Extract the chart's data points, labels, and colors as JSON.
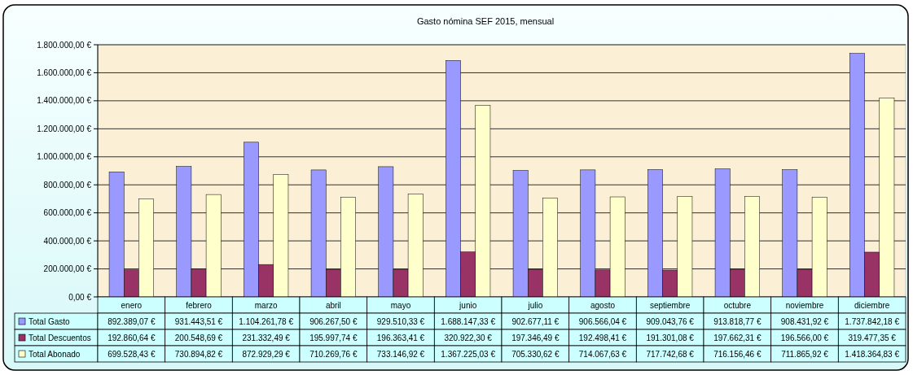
{
  "chart_data": {
    "type": "bar",
    "title": "Gasto nómina SEF 2015, mensual",
    "categories": [
      "enero",
      "febrero",
      "marzo",
      "abril",
      "mayo",
      "junio",
      "julio",
      "agosto",
      "septiembre",
      "octubre",
      "noviembre",
      "diciembre"
    ],
    "series": [
      {
        "name": "Total Gasto",
        "color": "#9999ff",
        "values": [
          892389.07,
          931443.51,
          1104261.78,
          906267.5,
          929510.33,
          1688147.33,
          902677.11,
          906566.04,
          909043.76,
          913818.77,
          908431.92,
          1737842.18
        ],
        "value_labels": [
          "892.389,07 €",
          "931.443,51 €",
          "1.104.261,78 €",
          "906.267,50 €",
          "929.510,33 €",
          "1.688.147,33 €",
          "902.677,11 €",
          "906.566,04 €",
          "909.043,76 €",
          "913.818,77 €",
          "908.431,92 €",
          "1.737.842,18 €"
        ]
      },
      {
        "name": "Total Descuentos",
        "color": "#993366",
        "values": [
          192860.64,
          200548.69,
          231332.49,
          195997.74,
          196363.41,
          320922.3,
          197346.49,
          192498.41,
          191301.08,
          197662.31,
          196566.0,
          319477.35
        ],
        "value_labels": [
          "192.860,64 €",
          "200.548,69 €",
          "231.332,49 €",
          "195.997,74 €",
          "196.363,41 €",
          "320.922,30 €",
          "197.346,49 €",
          "192.498,41 €",
          "191.301,08 €",
          "197.662,31 €",
          "196.566,00 €",
          "319.477,35 €"
        ]
      },
      {
        "name": "Total Abonado",
        "color": "#ffffcc",
        "values": [
          699528.43,
          730894.82,
          872929.29,
          710269.76,
          733146.92,
          1367225.03,
          705330.62,
          714067.63,
          717742.68,
          716156.46,
          711865.92,
          1418364.83
        ],
        "value_labels": [
          "699.528,43 €",
          "730.894,82 €",
          "872.929,29 €",
          "710.269,76 €",
          "733.146,92 €",
          "1.367.225,03 €",
          "705.330,62 €",
          "714.067,63 €",
          "717.742,68 €",
          "716.156,46 €",
          "711.865,92 €",
          "1.418.364,83 €"
        ]
      }
    ],
    "ylim": [
      0,
      1800000
    ],
    "yticks": [
      {
        "value": 0,
        "label": "0,00 €"
      },
      {
        "value": 200000,
        "label": "200.000,00 €"
      },
      {
        "value": 400000,
        "label": "400.000,00 €"
      },
      {
        "value": 600000,
        "label": "600.000,00 €"
      },
      {
        "value": 800000,
        "label": "800.000,00 €"
      },
      {
        "value": 1000000,
        "label": "1.000.000,00 €"
      },
      {
        "value": 1200000,
        "label": "1.200.000,00 €"
      },
      {
        "value": 1400000,
        "label": "1.400.000,00 €"
      },
      {
        "value": 1600000,
        "label": "1.600.000,00 €"
      },
      {
        "value": 1800000,
        "label": "1.800.000,00 €"
      }
    ],
    "grid": "y",
    "legend": "bottom"
  }
}
